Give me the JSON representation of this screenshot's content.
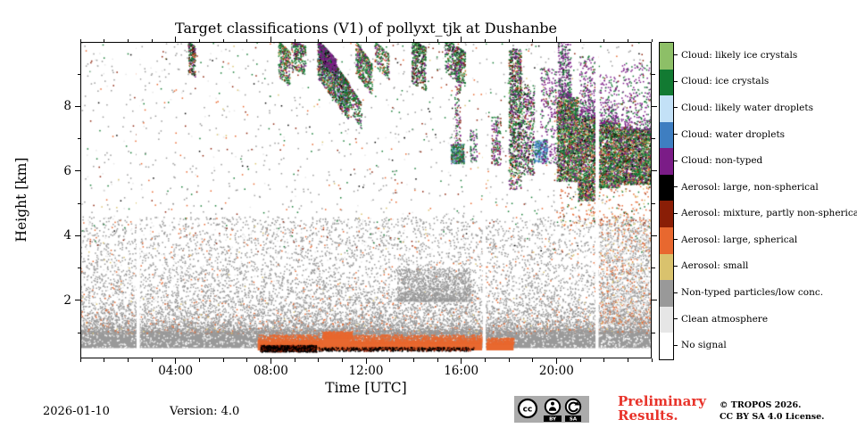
{
  "chart_data": {
    "type": "heatmap",
    "title": "Target classifications (V1) of pollyxt_tjk at Dushanbe",
    "xlabel": "Time [UTC]",
    "ylabel": "Height [km]",
    "axes": {
      "x": {
        "range": [
          0,
          24
        ],
        "major": [
          4,
          8,
          12,
          16,
          20
        ],
        "major_labels": [
          "04:00",
          "08:00",
          "12:00",
          "16:00",
          "20:00"
        ],
        "minor_step": 1
      },
      "y": {
        "range": [
          0.2,
          10.0
        ],
        "major": [
          2,
          4,
          6,
          8
        ],
        "major_labels": [
          "2",
          "4",
          "6",
          "8"
        ],
        "minor": [
          1,
          3,
          5,
          7,
          9
        ]
      }
    },
    "legend_position": "right-colorbar",
    "classes": [
      {
        "id": "likely_ice",
        "label": "Cloud: likely ice crystals",
        "color": "#8dbf67"
      },
      {
        "id": "ice",
        "label": "Cloud: ice crystals",
        "color": "#127a32"
      },
      {
        "id": "likely_water",
        "label": "Cloud: likely water droplets",
        "color": "#c3e1f7"
      },
      {
        "id": "water",
        "label": "Cloud: water droplets",
        "color": "#3e7ec1"
      },
      {
        "id": "cloud_nt",
        "label": "Cloud: non-typed",
        "color": "#7b1c87"
      },
      {
        "id": "aero_large_ns",
        "label": "Aerosol: large, non-spherical",
        "color": "#000000"
      },
      {
        "id": "aero_mix",
        "label": "Aerosol: mixture, partly non-spherical",
        "color": "#8a1e06"
      },
      {
        "id": "aero_large_s",
        "label": "Aerosol: large, spherical",
        "color": "#e8682f"
      },
      {
        "id": "aero_small",
        "label": "Aerosol: small",
        "color": "#d9c26d"
      },
      {
        "id": "nontyped",
        "label": "Non-typed particles/low conc.",
        "color": "#999999"
      },
      {
        "id": "clean",
        "label": "Clean atmosphere",
        "color": "#e6e6e6"
      },
      {
        "id": "nosignal",
        "label": "No signal",
        "color": "#ffffff"
      }
    ],
    "features": [
      {
        "type": "fill",
        "cls": "nontyped",
        "t": [
          0,
          24
        ],
        "h": [
          0.52,
          1.02
        ]
      },
      {
        "type": "scatter",
        "t": [
          0,
          24
        ],
        "h": [
          0.52,
          1.0
        ],
        "n": 1100,
        "mix": {
          "nosignal": 0.6,
          "clean": 0.4
        }
      },
      {
        "type": "scatter",
        "t": [
          0,
          24
        ],
        "h": [
          1.0,
          4.6
        ],
        "n": 18500,
        "bias": 3.8,
        "mix": {
          "nontyped": 0.8,
          "clean": 0.13,
          "aero_large_s": 0.06,
          "aero_small": 0.01
        }
      },
      {
        "type": "scatter",
        "t": [
          0,
          24
        ],
        "h": [
          3.5,
          10.0
        ],
        "n": 1500,
        "mix": {
          "nontyped": 0.5,
          "clean": 0.12,
          "ice": 0.12,
          "aero_mix": 0.1,
          "aero_large_s": 0.09,
          "aero_small": 0.04,
          "aero_large_ns": 0.03
        }
      },
      {
        "type": "scatter",
        "t": [
          13.3,
          16.4
        ],
        "h": [
          2.0,
          3.0
        ],
        "n": 1700,
        "bias": 2.2,
        "mix": {
          "nontyped": 0.85,
          "clean": 0.15
        }
      },
      {
        "type": "scatter",
        "t": [
          21.8,
          24
        ],
        "h": [
          1.3,
          4.6
        ],
        "n": 1500,
        "bias": 1.6,
        "mix": {
          "nontyped": 0.4,
          "clean": 0.38,
          "aero_large_s": 0.17,
          "aero_small": 0.05
        }
      },
      {
        "type": "fill",
        "cls": "aero_large_s",
        "t": [
          7.45,
          16.88
        ],
        "h": [
          0.45,
          0.72
        ]
      },
      {
        "type": "scatter",
        "t": [
          7.45,
          16.88
        ],
        "h": [
          0.7,
          0.95
        ],
        "n": 2600,
        "bias": 2.5,
        "mix": {
          "aero_large_s": 1
        }
      },
      {
        "type": "fill",
        "cls": "aero_large_s",
        "t": [
          10.2,
          11.3
        ],
        "h": [
          0.6,
          0.88
        ]
      },
      {
        "type": "scatter",
        "t": [
          10.15,
          11.4
        ],
        "h": [
          0.85,
          1.05
        ],
        "n": 500,
        "bias": 2,
        "mix": {
          "aero_large_s": 1
        }
      },
      {
        "type": "scatter",
        "t": [
          7.55,
          9.9
        ],
        "h": [
          0.42,
          0.62
        ],
        "n": 900,
        "mix": {
          "aero_large_ns": 0.75,
          "aero_mix": 0.25
        }
      },
      {
        "type": "scatter",
        "t": [
          10.0,
          16.5
        ],
        "h": [
          0.44,
          0.56
        ],
        "n": 500,
        "mix": {
          "aero_large_ns": 0.7,
          "aero_mix": 0.3
        }
      },
      {
        "type": "fill",
        "cls": "aero_large_s",
        "t": [
          17.05,
          18.2
        ],
        "h": [
          0.45,
          0.68
        ]
      },
      {
        "type": "scatter",
        "t": [
          17.05,
          18.2
        ],
        "h": [
          0.66,
          0.85
        ],
        "n": 300,
        "bias": 2,
        "mix": {
          "aero_large_s": 1
        }
      },
      {
        "type": "streak",
        "t": [
          4.52,
          4.82
        ],
        "hTop": [
          10.05,
          9.85
        ],
        "thick": 0.95,
        "n": 200,
        "mix": {
          "ice": 0.45,
          "cloud_nt": 0.2,
          "aero_large_ns": 0.12,
          "aero_mix": 0.13,
          "aero_large_s": 0.1
        }
      },
      {
        "type": "streak",
        "t": [
          8.3,
          8.8
        ],
        "hTop": [
          10.05,
          9.7
        ],
        "thick": 1.1,
        "n": 280,
        "mix": {
          "ice": 0.5,
          "cloud_nt": 0.18,
          "aero_mix": 0.12,
          "likely_ice": 0.08,
          "aero_large_s": 0.12
        }
      },
      {
        "type": "streak",
        "t": [
          8.85,
          9.45
        ],
        "hTop": [
          10.05,
          9.9
        ],
        "thick": 0.9,
        "n": 240,
        "mix": {
          "ice": 0.48,
          "cloud_nt": 0.2,
          "aero_mix": 0.12,
          "likely_ice": 0.08,
          "aero_large_s": 0.07,
          "aero_large_ns": 0.05
        }
      },
      {
        "type": "streak",
        "t": [
          9.95,
          11.25
        ],
        "hTop": [
          10.05,
          8.75
        ],
        "thick": 1.15,
        "n": 1500,
        "mix": {
          "ice": 0.42,
          "cloud_nt": 0.2,
          "likely_water": 0.07,
          "water": 0.04,
          "aero_large_ns": 0.08,
          "aero_mix": 0.08,
          "aero_large_s": 0.06,
          "likely_ice": 0.05
        }
      },
      {
        "type": "streak",
        "t": [
          10.0,
          10.75
        ],
        "hTop": [
          10.05,
          9.45
        ],
        "thick": 0.55,
        "n": 380,
        "mix": {
          "cloud_nt": 0.75,
          "ice": 0.15,
          "aero_large_ns": 0.1
        }
      },
      {
        "type": "streak",
        "t": [
          11.1,
          11.8
        ],
        "hTop": [
          8.9,
          8.1
        ],
        "thick": 0.8,
        "n": 220,
        "mix": {
          "ice": 0.6,
          "cloud_nt": 0.2,
          "aero_mix": 0.2
        }
      },
      {
        "type": "streak",
        "t": [
          11.55,
          12.25
        ],
        "hTop": [
          10.05,
          9.3
        ],
        "thick": 1.0,
        "n": 420,
        "mix": {
          "ice": 0.5,
          "cloud_nt": 0.25,
          "aero_mix": 0.1,
          "likely_ice": 0.07,
          "aero_large_s": 0.08
        }
      },
      {
        "type": "streak",
        "t": [
          12.35,
          12.95
        ],
        "hTop": [
          10.05,
          9.65
        ],
        "thick": 0.8,
        "n": 170,
        "mix": {
          "ice": 0.55,
          "cloud_nt": 0.2,
          "aero_mix": 0.15,
          "aero_large_s": 0.1
        }
      },
      {
        "type": "streak",
        "t": [
          13.9,
          14.5
        ],
        "hTop": [
          10.1,
          9.85
        ],
        "thick": 1.35,
        "n": 430,
        "mix": {
          "ice": 0.45,
          "cloud_nt": 0.2,
          "aero_mix": 0.15,
          "aero_large_ns": 0.1,
          "likely_ice": 0.1
        }
      },
      {
        "type": "streak",
        "t": [
          15.3,
          16.15
        ],
        "hTop": [
          10.15,
          9.7
        ],
        "thick": 1.1,
        "n": 430,
        "mix": {
          "ice": 0.45,
          "cloud_nt": 0.2,
          "aero_mix": 0.15,
          "aero_large_ns": 0.1,
          "likely_ice": 0.1
        }
      },
      {
        "type": "scatter",
        "t": [
          15.7,
          15.95
        ],
        "h": [
          6.8,
          9.6
        ],
        "n": 130,
        "mix": {
          "ice": 0.4,
          "cloud_nt": 0.4,
          "aero_mix": 0.2
        }
      },
      {
        "type": "scatter",
        "t": [
          15.55,
          16.1
        ],
        "h": [
          6.25,
          6.85
        ],
        "n": 420,
        "mix": {
          "ice": 0.45,
          "water": 0.15,
          "likely_water": 0.12,
          "cloud_nt": 0.12,
          "likely_ice": 0.08,
          "aero_mix": 0.08
        }
      },
      {
        "type": "scatter",
        "t": [
          16.35,
          16.65
        ],
        "h": [
          6.3,
          7.3
        ],
        "n": 70,
        "mix": {
          "cloud_nt": 0.5,
          "ice": 0.5
        }
      },
      {
        "type": "scatter",
        "t": [
          17.25,
          17.65
        ],
        "h": [
          6.2,
          7.7
        ],
        "n": 150,
        "mix": {
          "cloud_nt": 0.45,
          "ice": 0.4,
          "aero_mix": 0.15
        }
      },
      {
        "type": "scatter",
        "t": [
          17.98,
          18.5
        ],
        "h": [
          5.4,
          9.8
        ],
        "n": 950,
        "bias": 0.8,
        "mix": {
          "ice": 0.42,
          "cloud_nt": 0.27,
          "aero_large_ns": 0.1,
          "aero_mix": 0.08,
          "likely_ice": 0.06,
          "aero_large_s": 0.07
        }
      },
      {
        "type": "scatter",
        "t": [
          18.5,
          19.05
        ],
        "h": [
          5.9,
          8.7
        ],
        "n": 420,
        "mix": {
          "ice": 0.4,
          "cloud_nt": 0.3,
          "aero_large_ns": 0.1,
          "aero_mix": 0.1,
          "likely_ice": 0.05,
          "aero_large_s": 0.05
        }
      },
      {
        "type": "scatter",
        "t": [
          19.05,
          19.6
        ],
        "h": [
          6.3,
          7.0
        ],
        "n": 300,
        "mix": {
          "water": 0.5,
          "likely_water": 0.28,
          "ice": 0.16,
          "cloud_nt": 0.06
        }
      },
      {
        "type": "scatter",
        "t": [
          19.3,
          20.0
        ],
        "h": [
          6.2,
          9.2
        ],
        "n": 240,
        "mix": {
          "cloud_nt": 0.6,
          "ice": 0.3,
          "aero_mix": 0.1
        }
      },
      {
        "type": "scatter",
        "t": [
          20.0,
          20.9
        ],
        "h": [
          5.7,
          8.3
        ],
        "n": 1700,
        "mix": {
          "ice": 0.4,
          "cloud_nt": 0.2,
          "likely_ice": 0.09,
          "aero_large_ns": 0.09,
          "aero_mix": 0.09,
          "aero_large_s": 0.09,
          "aero_small": 0.04
        }
      },
      {
        "type": "scatter",
        "t": [
          20.05,
          20.6
        ],
        "h": [
          8.3,
          10.0
        ],
        "n": 320,
        "bias": 1.6,
        "mix": {
          "cloud_nt": 0.6,
          "ice": 0.35,
          "aero_large_ns": 0.05
        }
      },
      {
        "type": "scatter",
        "t": [
          20.9,
          21.62
        ],
        "h": [
          5.1,
          7.7
        ],
        "n": 1400,
        "mix": {
          "ice": 0.4,
          "cloud_nt": 0.2,
          "likely_ice": 0.09,
          "aero_large_ns": 0.09,
          "aero_mix": 0.09,
          "aero_large_s": 0.09,
          "aero_small": 0.04
        }
      },
      {
        "type": "scatter",
        "t": [
          20.95,
          21.6
        ],
        "h": [
          7.7,
          9.6
        ],
        "n": 260,
        "bias": 1.8,
        "mix": {
          "cloud_nt": 0.65,
          "ice": 0.3,
          "aero_mix": 0.05
        }
      },
      {
        "type": "scatter",
        "t": [
          21.78,
          22.65
        ],
        "h": [
          5.5,
          7.5
        ],
        "n": 1400,
        "mix": {
          "ice": 0.4,
          "cloud_nt": 0.2,
          "likely_ice": 0.09,
          "aero_large_ns": 0.09,
          "aero_mix": 0.09,
          "aero_large_s": 0.09,
          "aero_small": 0.04
        }
      },
      {
        "type": "scatter",
        "t": [
          21.8,
          22.6
        ],
        "h": [
          7.5,
          9.0
        ],
        "n": 220,
        "bias": 1.8,
        "mix": {
          "cloud_nt": 0.65,
          "ice": 0.3,
          "aero_mix": 0.05
        }
      },
      {
        "type": "scatter",
        "t": [
          22.65,
          24.0
        ],
        "h": [
          5.6,
          7.3
        ],
        "n": 1900,
        "mix": {
          "ice": 0.4,
          "cloud_nt": 0.2,
          "likely_ice": 0.09,
          "aero_large_ns": 0.09,
          "aero_mix": 0.09,
          "aero_large_s": 0.09,
          "aero_small": 0.04
        }
      },
      {
        "type": "scatter",
        "t": [
          22.7,
          24.0
        ],
        "h": [
          7.3,
          9.4
        ],
        "n": 320,
        "bias": 1.8,
        "mix": {
          "cloud_nt": 0.65,
          "ice": 0.3,
          "aero_mix": 0.05
        }
      },
      {
        "type": "scatter",
        "t": [
          20.0,
          24.0
        ],
        "h": [
          4.3,
          5.6
        ],
        "n": 200,
        "mix": {
          "aero_large_s": 0.5,
          "aero_mix": 0.2,
          "ice": 0.15,
          "aero_small": 0.15
        }
      },
      {
        "type": "gap",
        "t": [
          2.36,
          2.5
        ]
      },
      {
        "type": "gap",
        "t": [
          16.9,
          17.03
        ]
      },
      {
        "type": "gap",
        "t": [
          21.64,
          21.77
        ]
      }
    ]
  },
  "footer": {
    "date": "2026-01-10",
    "version": "Version: 4.0",
    "preliminary_line1": "Preliminary",
    "preliminary_line2": "Results.",
    "preliminary_color": "#e8332a",
    "copyright_line1": "© TROPOS 2026.",
    "copyright_line2": "CC BY SA 4.0 License."
  },
  "badge": {
    "cc": "CC",
    "by": "BY",
    "sa": "SA"
  }
}
